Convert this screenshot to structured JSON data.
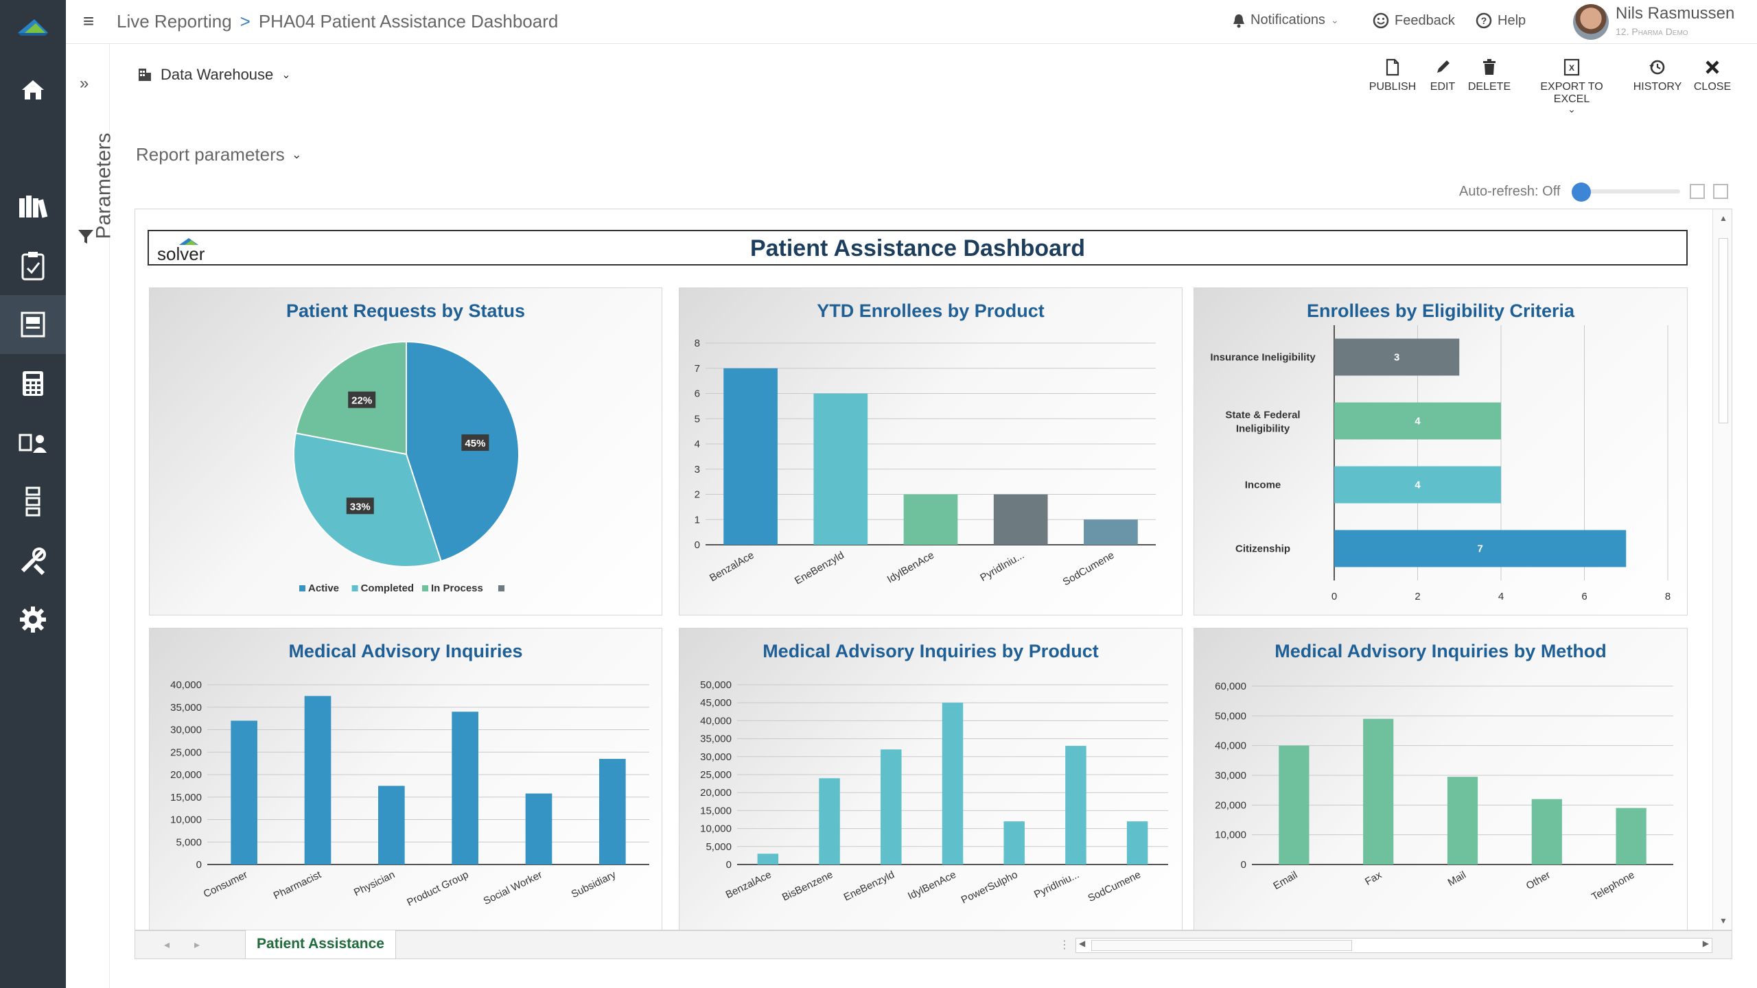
{
  "topbar": {
    "breadcrumb_root": "Live Reporting",
    "breadcrumb_sep": ">",
    "breadcrumb_current": "PHA04 Patient Assistance Dashboard",
    "notifications": "Notifications",
    "feedback": "Feedback",
    "help": "Help",
    "user_name": "Nils Rasmussen",
    "user_org": "12. Pharma Demo"
  },
  "nav_icons": [
    "home-icon",
    "library-icon",
    "clipboard-icon",
    "report-icon",
    "calculator-icon",
    "users-icon",
    "hierarchy-icon",
    "tools-icon",
    "settings-icon"
  ],
  "params": {
    "label": "Parameters"
  },
  "toolbar": {
    "data_source": "Data Warehouse",
    "publish": "PUBLISH",
    "edit": "EDIT",
    "delete": "DELETE",
    "export": "EXPORT TO EXCEL",
    "history": "HISTORY",
    "close": "CLOSE"
  },
  "report_params": "Report parameters",
  "auto_refresh": "Auto-refresh: Off",
  "dashboard": {
    "logo_text": "solver",
    "title": "Patient Assistance Dashboard"
  },
  "colors": {
    "blue": "#3694c4",
    "teal": "#5fc0cc",
    "green": "#6fc09c",
    "dark": "#6d7b80",
    "slate": "#6a94a8",
    "accent": "#1e5f96"
  },
  "chart_data": [
    {
      "type": "pie",
      "title": "Patient Requests by Status",
      "categories": [
        "Active",
        "Completed",
        "In Process",
        ""
      ],
      "values": [
        45,
        33,
        22,
        0
      ],
      "value_labels": [
        "45%",
        "33%",
        "22%",
        ""
      ],
      "legend": "bottom"
    },
    {
      "type": "bar",
      "title": "YTD Enrollees by Product",
      "categories": [
        "BenzalAce",
        "EneBenzyld",
        "IdylBenAce",
        "PyridIniu...",
        "SodCumene"
      ],
      "values": [
        7,
        6,
        2,
        2,
        1
      ],
      "ylim": [
        0,
        8
      ],
      "yticks": [
        "0",
        "1",
        "2",
        "3",
        "4",
        "5",
        "6",
        "7",
        "8"
      ],
      "grid": true
    },
    {
      "type": "bar",
      "orientation": "horizontal",
      "title": "Enrollees by Eligibility Criteria",
      "categories": [
        "Insurance Ineligibility",
        "State & Federal Ineligibility",
        "Income",
        "Citizenship"
      ],
      "values": [
        3,
        4,
        4,
        7
      ],
      "value_labels": [
        "3",
        "4",
        "4",
        "7"
      ],
      "xlim": [
        0,
        8
      ],
      "xticks": [
        "0",
        "2",
        "4",
        "6",
        "8"
      ],
      "grid": true
    },
    {
      "type": "bar",
      "title": "Medical Advisory Inquiries",
      "categories": [
        "Consumer",
        "Pharmacist",
        "Physician",
        "Product Group",
        "Social Worker",
        "Subsidiary"
      ],
      "values": [
        32000,
        37500,
        17500,
        34000,
        15800,
        23500
      ],
      "ylim": [
        0,
        40000
      ],
      "yticks": [
        "0",
        "5,000",
        "10,000",
        "15,000",
        "20,000",
        "25,000",
        "30,000",
        "35,000",
        "40,000"
      ],
      "grid": true
    },
    {
      "type": "bar",
      "title": "Medical Advisory Inquiries by Product",
      "categories": [
        "BenzalAce",
        "BisBenzene",
        "EneBenzyld",
        "IdylBenAce",
        "PowerSulpho",
        "PyridIniu...",
        "SodCumene"
      ],
      "values": [
        3000,
        24000,
        32000,
        45000,
        12000,
        33000,
        12000
      ],
      "ylim": [
        0,
        50000
      ],
      "yticks": [
        "0",
        "5,000",
        "10,000",
        "15,000",
        "20,000",
        "25,000",
        "30,000",
        "35,000",
        "40,000",
        "45,000",
        "50,000"
      ],
      "grid": true
    },
    {
      "type": "bar",
      "title": "Medical Advisory Inquiries by Method",
      "categories": [
        "Email",
        "Fax",
        "Mail",
        "Other",
        "Telephone"
      ],
      "values": [
        40000,
        49000,
        29500,
        22000,
        19000
      ],
      "ylim": [
        0,
        60000
      ],
      "yticks": [
        "0",
        "10,000",
        "20,000",
        "30,000",
        "40,000",
        "50,000",
        "60,000"
      ],
      "grid": true
    }
  ],
  "sheet_tab": "Patient Assistance"
}
